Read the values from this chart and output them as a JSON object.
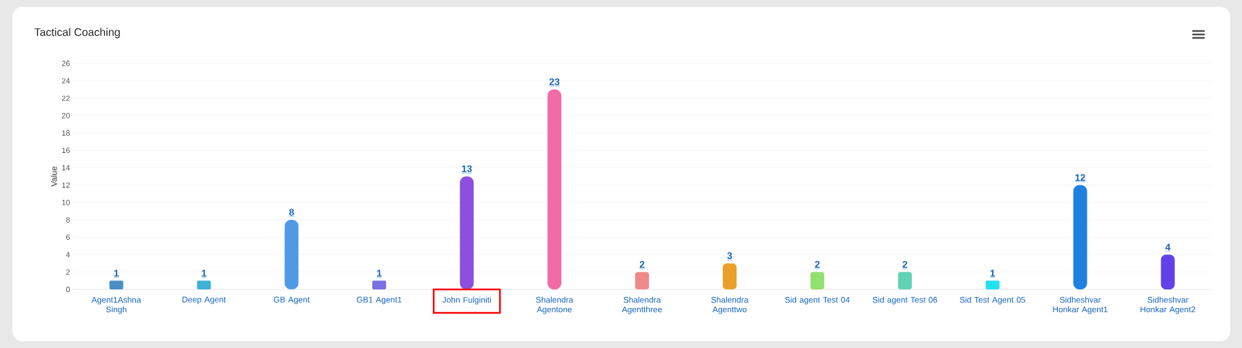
{
  "chart_data": {
    "type": "bar",
    "title": "Tactical Coaching",
    "ylabel": "Value",
    "categories": [
      "Agent1Ashna Singh",
      "Deep Agent",
      "GB Agent",
      "GB1 Agent1",
      "John Fulginiti",
      "Shalendra Agentone",
      "Shalendra Agentthree",
      "Shalendra Agenttwo",
      "Sid agent Test 04",
      "Sid agent Test 06",
      "Sid Test Agent 05",
      "Sidheshvar Honkar Agent1",
      "Sidheshvar Honkar Agent2"
    ],
    "values": [
      1,
      1,
      8,
      1,
      13,
      23,
      2,
      3,
      2,
      2,
      1,
      12,
      4
    ],
    "colors": [
      "#4a8fc4",
      "#3fb0d6",
      "#4f9be6",
      "#7a70e0",
      "#8d4fe0",
      "#f26aa6",
      "#f08a8a",
      "#eaa02a",
      "#93df70",
      "#62d2b4",
      "#22e2f0",
      "#1f80e0",
      "#6242e8"
    ],
    "ylim": [
      0,
      26
    ],
    "yticks": [
      0,
      2,
      4,
      6,
      8,
      10,
      12,
      14,
      16,
      18,
      20,
      22,
      24,
      26
    ],
    "grid": "y",
    "data_labels": true
  }
}
